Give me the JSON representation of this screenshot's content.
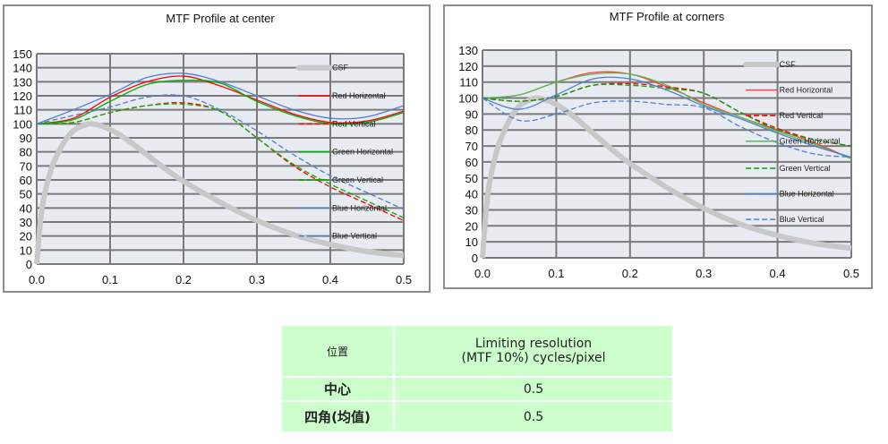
{
  "chart_data": [
    {
      "type": "line",
      "title": "MTF Profile at center",
      "xlim": [
        0,
        0.5
      ],
      "ylim": [
        0,
        150
      ],
      "ytick_step": 10,
      "xticks": [
        "0.0",
        "0.1",
        "0.2",
        "0.3",
        "0.4",
        "0.5"
      ],
      "grid": true,
      "legend": "right-inside",
      "csf": {
        "name": "CSF",
        "color": "#c8c8c8",
        "x": [
          0,
          0.005,
          0.01,
          0.02,
          0.03,
          0.04,
          0.05,
          0.06,
          0.075,
          0.1,
          0.125,
          0.15,
          0.175,
          0.2,
          0.25,
          0.3,
          0.35,
          0.4,
          0.45,
          0.5
        ],
        "y": [
          0,
          30,
          48,
          68,
          80,
          89,
          95,
          98,
          100,
          96,
          88,
          78,
          68,
          59,
          44,
          31,
          21,
          14,
          9,
          6
        ]
      },
      "x": [
        0,
        0.05,
        0.1,
        0.15,
        0.2,
        0.25,
        0.3,
        0.35,
        0.4,
        0.45,
        0.5
      ],
      "series": [
        {
          "name": "Red Horizontal",
          "color": "#ff0000",
          "dash": false,
          "values": [
            100,
            104,
            119,
            130,
            134,
            127,
            117,
            107,
            101,
            102,
            109
          ]
        },
        {
          "name": "Red Vertical",
          "color": "#ff0000",
          "dash": true,
          "values": [
            100,
            101,
            108,
            113,
            115,
            109,
            90,
            70,
            55,
            43,
            31
          ]
        },
        {
          "name": "Green Horizontal",
          "color": "#00b000",
          "dash": false,
          "values": [
            100,
            103,
            116,
            128,
            131,
            129,
            116,
            106,
            100,
            101,
            108
          ]
        },
        {
          "name": "Green Vertical",
          "color": "#00b000",
          "dash": true,
          "values": [
            100,
            101,
            108,
            113,
            114,
            109,
            90,
            71,
            57,
            45,
            33
          ]
        },
        {
          "name": "Blue Horizontal",
          "color": "#4f7fd0",
          "dash": false,
          "values": [
            100,
            110,
            121,
            133,
            136,
            130,
            120,
            110,
            104,
            105,
            113
          ]
        },
        {
          "name": "Blue Vertical",
          "color": "#4f7fd0",
          "dash": true,
          "values": [
            100,
            106,
            112,
            119,
            120,
            110,
            95,
            78,
            63,
            51,
            39
          ]
        }
      ]
    },
    {
      "type": "line",
      "title": "MTF Profile at corners",
      "xlim": [
        0,
        0.5
      ],
      "ylim": [
        0,
        130
      ],
      "ytick_step": 10,
      "xticks": [
        "0.0",
        "0.1",
        "0.2",
        "0.3",
        "0.4",
        "0.5"
      ],
      "grid": true,
      "legend": "right-inside",
      "csf": {
        "name": "CSF",
        "color": "#c8c8c8",
        "x": [
          0,
          0.005,
          0.01,
          0.02,
          0.03,
          0.04,
          0.05,
          0.06,
          0.075,
          0.1,
          0.125,
          0.15,
          0.175,
          0.2,
          0.25,
          0.3,
          0.35,
          0.4,
          0.45,
          0.5
        ],
        "y": [
          0,
          30,
          48,
          68,
          80,
          89,
          95,
          98,
          100,
          96,
          88,
          78,
          68,
          59,
          44,
          31,
          21,
          14,
          9,
          6
        ]
      },
      "x": [
        0,
        0.05,
        0.1,
        0.15,
        0.2,
        0.25,
        0.3,
        0.35,
        0.4,
        0.45,
        0.5
      ],
      "series": [
        {
          "name": "Red Horizontal",
          "color": "#ff4040",
          "dash": false,
          "values": [
            100,
            102,
            110,
            116,
            115,
            107,
            97,
            88,
            80,
            72,
            62
          ]
        },
        {
          "name": "Red Vertical",
          "color": "#ff0000",
          "dash": true,
          "values": [
            100,
            98,
            101,
            108,
            109,
            107,
            103,
            91,
            81,
            74,
            70
          ]
        },
        {
          "name": "Green Horizontal",
          "color": "#50c050",
          "dash": false,
          "values": [
            100,
            102,
            110,
            115,
            115,
            108,
            96,
            88,
            79,
            71,
            62
          ]
        },
        {
          "name": "Green Vertical",
          "color": "#00a000",
          "dash": true,
          "values": [
            100,
            98,
            101,
            108,
            108,
            106,
            103,
            91,
            80,
            74,
            70
          ]
        },
        {
          "name": "Blue Horizontal",
          "color": "#4f7fd0",
          "dash": false,
          "values": [
            100,
            93,
            102,
            112,
            112,
            105,
            95,
            87,
            78,
            70,
            63
          ]
        },
        {
          "name": "Blue Vertical",
          "color": "#4f7fd0",
          "dash": true,
          "values": [
            100,
            86,
            90,
            97,
            98,
            96,
            94,
            82,
            72,
            65,
            63
          ]
        }
      ]
    }
  ],
  "table": {
    "header": {
      "position": "位置",
      "resolution_line1": "Limiting resolution",
      "resolution_line2": "(MTF 10%) cycles/pixel"
    },
    "rows": [
      {
        "label": "中心",
        "value": "0.5"
      },
      {
        "label": "四角(均值)",
        "value": "0.5"
      }
    ]
  }
}
